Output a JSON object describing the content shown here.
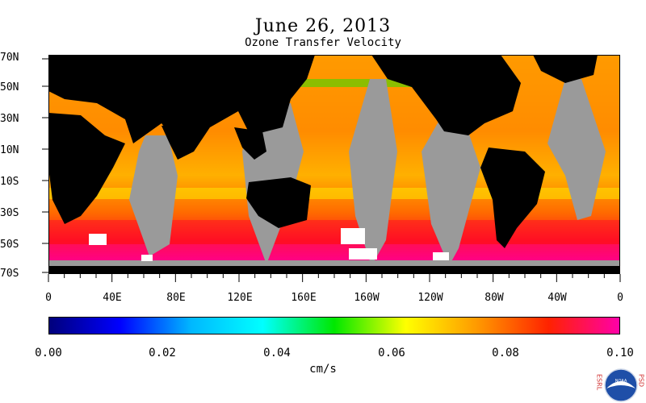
{
  "map": {
    "title": "June 26, 2013",
    "subtitle": "Ozone Transfer Velocity",
    "lat_labels": [
      "70N",
      "50N",
      "30N",
      "10N",
      "10S",
      "30S",
      "50S",
      "70S"
    ],
    "lon_labels": [
      "0",
      "40E",
      "80E",
      "120E",
      "160E",
      "160W",
      "120W",
      "80W",
      "40W",
      "0"
    ],
    "colors": {
      "land": "#000000",
      "missing": "#9a9a9a"
    }
  },
  "colorbar": {
    "tick_labels": [
      "0.00",
      "0.02",
      "0.04",
      "0.06",
      "0.08",
      "0.10"
    ],
    "units": "cm/s",
    "colors": [
      "#00007a",
      "#0000ff",
      "#00b8ff",
      "#00ffff",
      "#00e800",
      "#ffff00",
      "#ff9900",
      "#ff2200",
      "#ff00aa"
    ]
  },
  "logo": {
    "left_text": "ESRL",
    "right_text": "PSD",
    "center_text": "NOAA"
  }
}
